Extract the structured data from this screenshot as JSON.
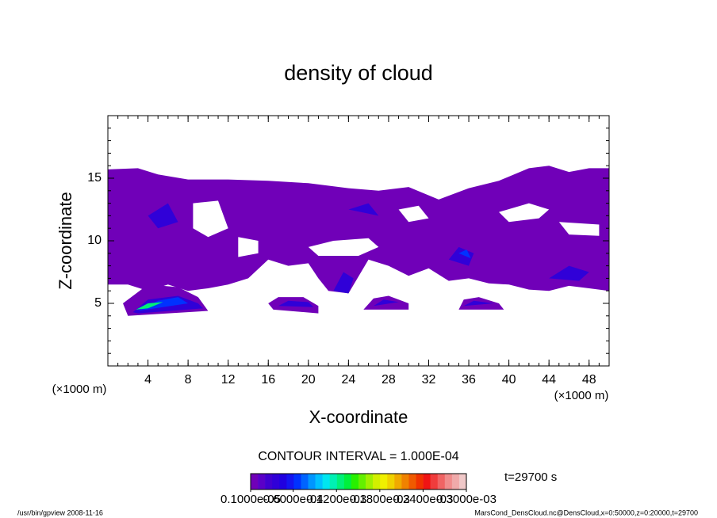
{
  "chart_data": {
    "type": "contour",
    "title": "density of cloud",
    "xlabel": "X-coordinate",
    "ylabel": "Z-coordinate",
    "xunit": "(×1000 m)",
    "yunit": "(×1000 m)",
    "xlim": [
      0,
      50
    ],
    "ylim": [
      0,
      20
    ],
    "xticks": [
      4,
      8,
      12,
      16,
      20,
      24,
      28,
      32,
      36,
      40,
      44,
      48
    ],
    "yticks": [
      5,
      10,
      15
    ],
    "xminor_step": 1,
    "yminor_step": 1,
    "contour_interval": "CONTOUR INTERVAL = 1.000E-04",
    "time_label": "t=29700 s",
    "footer_left": "/usr/bin/gpview  2008-11-16",
    "footer_right": "MarsCond_DensCloud.nc@DensCloud,x=0:50000,z=0:20000,t=29700",
    "clim": [
      1e-06,
      0.0003
    ],
    "colorbar_ticks": [
      {
        "value": 1e-06,
        "label": "0.1000e-05"
      },
      {
        "value": 6e-05,
        "label": "0.6000e-04"
      },
      {
        "value": 0.00012,
        "label": "0.1200e-03"
      },
      {
        "value": 0.00018,
        "label": "0.1800e-03"
      },
      {
        "value": 0.00024,
        "label": "0.2400e-03"
      },
      {
        "value": 0.0003,
        "label": "0.3000e-03"
      }
    ],
    "colors": [
      "#7000b8",
      "#5a00c8",
      "#4000d0",
      "#3000d8",
      "#2000e0",
      "#1414f0",
      "#0032ff",
      "#0064ff",
      "#0096ff",
      "#00c0ff",
      "#00e6f0",
      "#00f0b4",
      "#00f078",
      "#00f03c",
      "#28f000",
      "#64f000",
      "#a0f000",
      "#d2f000",
      "#f0f000",
      "#f0d200",
      "#f0aa00",
      "#f08200",
      "#f05a00",
      "#f03200",
      "#f01414",
      "#f03c3c",
      "#f06464",
      "#f08c8c",
      "#f0aaaa",
      "#f0c8c8"
    ],
    "regions": [
      {
        "value": 1e-05,
        "points": [
          [
            0,
            15.7
          ],
          [
            3,
            15.8
          ],
          [
            5,
            15.3
          ],
          [
            8,
            14.9
          ],
          [
            12,
            14.9
          ],
          [
            16,
            14.8
          ],
          [
            20,
            14.6
          ],
          [
            24,
            14.2
          ],
          [
            27,
            14
          ],
          [
            30,
            14.3
          ],
          [
            33,
            13.3
          ],
          [
            36,
            14.2
          ],
          [
            39,
            14.8
          ],
          [
            42,
            15.8
          ],
          [
            44,
            16
          ],
          [
            46,
            15.5
          ],
          [
            48,
            15.8
          ],
          [
            50,
            15.8
          ],
          [
            50,
            6
          ],
          [
            48,
            6.2
          ],
          [
            46,
            6.4
          ],
          [
            44,
            6
          ],
          [
            42,
            6.1
          ],
          [
            40,
            6.5
          ],
          [
            38,
            6.6
          ],
          [
            36,
            7
          ],
          [
            34,
            6.8
          ],
          [
            32,
            7.8
          ],
          [
            30,
            7.2
          ],
          [
            28,
            8
          ],
          [
            26,
            8.5
          ],
          [
            24,
            5.8
          ],
          [
            22,
            6
          ],
          [
            21,
            7
          ],
          [
            20,
            8.2
          ],
          [
            18,
            8
          ],
          [
            16,
            8.5
          ],
          [
            14,
            7
          ],
          [
            12,
            6.5
          ],
          [
            10,
            6.2
          ],
          [
            8,
            6
          ],
          [
            6,
            6.5
          ],
          [
            4,
            6
          ],
          [
            2,
            6.5
          ],
          [
            0,
            6.5
          ]
        ]
      },
      {
        "value": 1e-05,
        "points": [
          [
            1.5,
            5
          ],
          [
            4,
            6.5
          ],
          [
            7,
            6.3
          ],
          [
            9,
            5.5
          ],
          [
            10,
            4.4
          ],
          [
            2,
            4
          ]
        ]
      },
      {
        "value": 1e-05,
        "points": [
          [
            16,
            5
          ],
          [
            17,
            5.5
          ],
          [
            19.5,
            5.5
          ],
          [
            21,
            4.8
          ],
          [
            21,
            4.2
          ],
          [
            16.5,
            4.5
          ]
        ]
      },
      {
        "value": 1e-05,
        "points": [
          [
            25.5,
            4.5
          ],
          [
            26.5,
            5.4
          ],
          [
            28,
            5.6
          ],
          [
            30,
            5
          ],
          [
            30,
            4.5
          ]
        ]
      },
      {
        "value": 1e-05,
        "points": [
          [
            35,
            4.5
          ],
          [
            35.5,
            5.3
          ],
          [
            37,
            5.5
          ],
          [
            39,
            5
          ],
          [
            39.5,
            4.5
          ]
        ]
      },
      {
        "value": 4e-05,
        "points": [
          [
            2.5,
            4.3
          ],
          [
            4,
            5.3
          ],
          [
            7,
            5.6
          ],
          [
            9,
            5
          ],
          [
            9.5,
            4.6
          ],
          [
            3,
            4.2
          ]
        ]
      },
      {
        "value": 4e-05,
        "points": [
          [
            17,
            4.8
          ],
          [
            18,
            5.2
          ],
          [
            20,
            5.1
          ],
          [
            20.5,
            4.7
          ]
        ]
      },
      {
        "value": 4e-05,
        "points": [
          [
            26.5,
            4.8
          ],
          [
            27.5,
            5.3
          ],
          [
            29,
            5.1
          ]
        ]
      },
      {
        "value": 4e-05,
        "points": [
          [
            35.5,
            4.8
          ],
          [
            36.5,
            5.2
          ],
          [
            38.5,
            5
          ]
        ]
      },
      {
        "value": 4e-05,
        "points": [
          [
            34,
            8.5
          ],
          [
            35,
            9.5
          ],
          [
            36.5,
            9
          ],
          [
            36,
            8
          ]
        ]
      },
      {
        "value": 4e-05,
        "points": [
          [
            44,
            7
          ],
          [
            46,
            8
          ],
          [
            48,
            7.5
          ],
          [
            47,
            6.8
          ]
        ]
      },
      {
        "value": 4e-05,
        "points": [
          [
            22.5,
            6
          ],
          [
            23.5,
            7.5
          ],
          [
            24.5,
            7
          ],
          [
            24,
            5.8
          ]
        ]
      },
      {
        "value": 4e-05,
        "points": [
          [
            4,
            12
          ],
          [
            6,
            13
          ],
          [
            7,
            11.5
          ],
          [
            5,
            11
          ]
        ]
      },
      {
        "value": 4e-05,
        "points": [
          [
            24,
            12.5
          ],
          [
            26,
            13
          ],
          [
            27,
            12
          ]
        ]
      },
      {
        "value": 7e-05,
        "points": [
          [
            35,
            9
          ],
          [
            35.8,
            9.3
          ],
          [
            36.2,
            8.6
          ]
        ]
      },
      {
        "value": 7e-05,
        "points": [
          [
            3,
            4.4
          ],
          [
            5,
            5.2
          ],
          [
            7,
            5.5
          ],
          [
            8,
            5
          ]
        ]
      },
      {
        "value": 0.00013,
        "points": [
          [
            2.8,
            4.5
          ],
          [
            4,
            5
          ],
          [
            5.5,
            5.1
          ],
          [
            4,
            4.6
          ]
        ]
      }
    ],
    "holes": [
      [
        [
          8.5,
          13
        ],
        [
          11,
          13.2
        ],
        [
          12,
          11
        ],
        [
          10,
          10.3
        ],
        [
          8.5,
          11
        ]
      ],
      [
        [
          13,
          10.3
        ],
        [
          15,
          10
        ],
        [
          15,
          9
        ],
        [
          13,
          8.7
        ]
      ],
      [
        [
          20,
          9.5
        ],
        [
          22.5,
          10
        ],
        [
          26,
          10.2
        ],
        [
          27,
          9.5
        ],
        [
          25,
          8.8
        ],
        [
          21,
          8.8
        ]
      ],
      [
        [
          29,
          12.5
        ],
        [
          31,
          12.8
        ],
        [
          32,
          11.8
        ],
        [
          30,
          11.5
        ]
      ],
      [
        [
          39,
          12.3
        ],
        [
          42,
          13
        ],
        [
          44,
          12.5
        ],
        [
          43,
          11.8
        ],
        [
          40,
          11.5
        ]
      ],
      [
        [
          45,
          11.5
        ],
        [
          49,
          11.3
        ],
        [
          49,
          10.4
        ],
        [
          46,
          10.5
        ]
      ]
    ]
  }
}
